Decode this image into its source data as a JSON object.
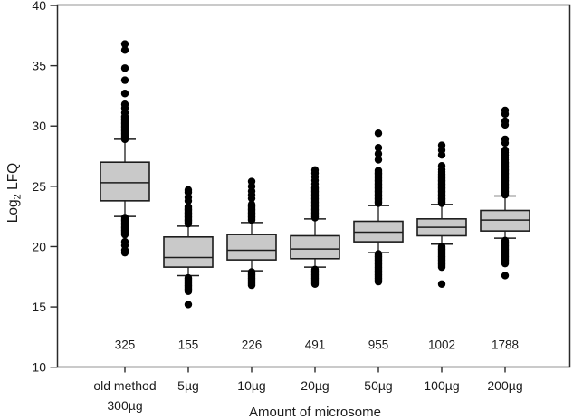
{
  "figure": {
    "background": "#ffffff",
    "box_fill": "#c9c9c9",
    "box_stroke": "#1c1c1c",
    "whisker_color": "#3a3a3a",
    "frame_color": "#2a2a2a",
    "outlier_color": "#000000",
    "text_color": "#1a1a1a"
  },
  "chart_data": {
    "type": "box",
    "title": "",
    "xlabel": "Amount of microsome",
    "ylabel": "Log2 LFQ",
    "ylabel_parts": {
      "base": "Log",
      "sub": "2",
      "rest": " LFQ"
    },
    "ylim": [
      10,
      40
    ],
    "y_ticks": [
      10,
      15,
      20,
      25,
      30,
      35,
      40
    ],
    "grid": false,
    "legend": "none",
    "categories": [
      "old method 300µg",
      "5µg",
      "10µg",
      "20µg",
      "50µg",
      "100µg",
      "200µg"
    ],
    "boxes": [
      {
        "id": "old-method-300ug",
        "label_lines": [
          "old method",
          "300µg"
        ],
        "count": "325",
        "whisker_low": 22.5,
        "q1": 23.8,
        "median": 25.3,
        "q3": 27.0,
        "whisker_high": 28.9,
        "outliers_high": [
          28.9,
          29.0,
          29.1,
          29.2,
          29.3,
          29.4,
          29.5,
          29.6,
          29.7,
          29.8,
          29.9,
          30.0,
          30.1,
          30.2,
          30.3,
          30.4,
          30.5,
          30.6,
          30.7,
          30.8,
          31.1,
          31.5,
          31.8,
          32.7,
          33.8,
          34.8,
          36.3,
          36.8
        ],
        "outliers_low": [
          22.4,
          22.3,
          22.2,
          22.1,
          22.0,
          21.9,
          21.8,
          21.7,
          21.6,
          21.5,
          21.4,
          21.3,
          21.2,
          21.1,
          21.0,
          20.4,
          20.1,
          19.7,
          19.5
        ]
      },
      {
        "id": "5ug",
        "label_lines": [
          "5µg"
        ],
        "count": "155",
        "whisker_low": 17.6,
        "q1": 18.3,
        "median": 19.1,
        "q3": 20.8,
        "whisker_high": 21.7,
        "outliers_high": [
          21.9,
          22.0,
          22.1,
          22.2,
          22.3,
          22.4,
          22.5,
          22.6,
          22.7,
          22.8,
          22.9,
          23.0,
          23.1,
          23.2,
          23.3,
          23.8,
          24.1,
          24.5,
          24.7
        ],
        "outliers_low": [
          17.4,
          17.3,
          17.2,
          17.1,
          17.0,
          16.9,
          16.8,
          16.7,
          16.6,
          16.5,
          16.4,
          16.3,
          15.2
        ]
      },
      {
        "id": "10ug",
        "label_lines": [
          "10µg"
        ],
        "count": "226",
        "whisker_low": 18.0,
        "q1": 18.9,
        "median": 19.7,
        "q3": 21.0,
        "whisker_high": 22.0,
        "outliers_high": [
          22.2,
          22.3,
          22.4,
          22.5,
          22.6,
          22.7,
          22.8,
          22.9,
          23.0,
          23.1,
          23.2,
          23.3,
          23.4,
          23.5,
          24.0,
          24.3,
          24.6,
          25.0,
          25.4
        ],
        "outliers_low": [
          17.9,
          17.8,
          17.7,
          17.6,
          17.5,
          17.4,
          17.3,
          17.2,
          17.1,
          17.0,
          16.9,
          16.8
        ]
      },
      {
        "id": "20ug",
        "label_lines": [
          "20µg"
        ],
        "count": "491",
        "whisker_low": 18.3,
        "q1": 19.0,
        "median": 19.8,
        "q3": 20.9,
        "whisker_high": 22.3,
        "outliers_high": [
          22.4,
          22.5,
          22.6,
          22.7,
          22.8,
          22.9,
          23.0,
          23.1,
          23.2,
          23.3,
          23.4,
          23.5,
          23.6,
          23.7,
          23.8,
          23.9,
          24.0,
          24.1,
          24.2,
          24.3,
          24.4,
          24.5,
          24.6,
          24.7,
          24.8,
          24.9,
          25.2,
          25.5,
          25.8,
          26.1,
          26.35
        ],
        "outliers_low": [
          18.1,
          18.0,
          17.9,
          17.8,
          17.7,
          17.6,
          17.5,
          17.4,
          17.3,
          17.2,
          17.1,
          17.0,
          16.9
        ]
      },
      {
        "id": "50ug",
        "label_lines": [
          "50µg"
        ],
        "count": "955",
        "whisker_low": 19.5,
        "q1": 20.4,
        "median": 21.2,
        "q3": 22.1,
        "whisker_high": 23.4,
        "outliers_high": [
          23.6,
          23.7,
          23.8,
          23.9,
          24.0,
          24.1,
          24.2,
          24.3,
          24.4,
          24.5,
          24.6,
          24.7,
          24.8,
          24.9,
          25.0,
          25.1,
          25.2,
          25.3,
          25.4,
          25.5,
          25.6,
          25.7,
          25.8,
          25.9,
          26.0,
          26.1,
          26.2,
          26.3,
          27.2,
          27.7,
          28.2,
          29.4
        ],
        "outliers_low": [
          19.4,
          19.3,
          19.2,
          19.1,
          19.0,
          18.9,
          18.8,
          18.7,
          18.6,
          18.5,
          18.4,
          18.3,
          18.2,
          18.1,
          18.0,
          17.9,
          17.8,
          17.7,
          17.6,
          17.5,
          17.4,
          17.3,
          17.2,
          17.1
        ]
      },
      {
        "id": "100ug",
        "label_lines": [
          "100µg"
        ],
        "count": "1002",
        "whisker_low": 20.2,
        "q1": 20.9,
        "median": 21.6,
        "q3": 22.3,
        "whisker_high": 23.5,
        "outliers_high": [
          23.6,
          23.7,
          23.8,
          23.9,
          24.0,
          24.1,
          24.2,
          24.3,
          24.4,
          24.5,
          24.6,
          24.7,
          24.8,
          24.9,
          25.0,
          25.1,
          25.2,
          25.3,
          25.4,
          25.5,
          25.6,
          25.7,
          25.8,
          25.9,
          26.0,
          26.2,
          26.4,
          26.7,
          27.6,
          28.0,
          28.4
        ],
        "outliers_low": [
          20.0,
          19.9,
          19.8,
          19.7,
          19.6,
          19.5,
          19.4,
          19.3,
          19.2,
          19.1,
          19.0,
          18.9,
          18.8,
          18.7,
          18.6,
          18.5,
          18.4,
          18.3,
          16.9
        ]
      },
      {
        "id": "200ug",
        "label_lines": [
          "200µg"
        ],
        "count": "1788",
        "whisker_low": 20.7,
        "q1": 21.3,
        "median": 22.2,
        "q3": 23.0,
        "whisker_high": 24.2,
        "outliers_high": [
          24.3,
          24.4,
          24.5,
          24.6,
          24.7,
          24.8,
          24.9,
          25.0,
          25.1,
          25.2,
          25.3,
          25.4,
          25.5,
          25.6,
          25.7,
          25.8,
          25.9,
          26.0,
          26.1,
          26.2,
          26.3,
          26.4,
          26.5,
          26.6,
          26.7,
          26.8,
          26.9,
          27.0,
          27.2,
          27.4,
          27.6,
          27.8,
          28.0,
          28.6,
          28.9,
          30.1,
          30.4,
          31.0,
          31.3
        ],
        "outliers_low": [
          20.5,
          20.4,
          20.3,
          20.2,
          20.1,
          20.0,
          19.9,
          19.8,
          19.7,
          19.6,
          19.5,
          19.4,
          19.3,
          19.2,
          19.1,
          19.0,
          18.9,
          18.8,
          18.7,
          18.6,
          17.6
        ]
      }
    ]
  }
}
